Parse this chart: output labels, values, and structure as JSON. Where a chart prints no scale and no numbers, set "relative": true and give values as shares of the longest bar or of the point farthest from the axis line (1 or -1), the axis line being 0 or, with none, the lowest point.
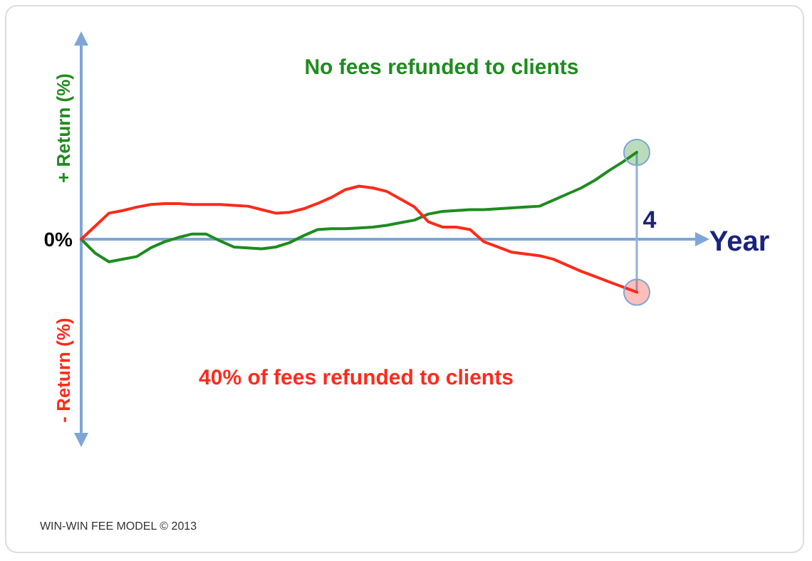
{
  "chart_data": {
    "type": "line",
    "relative": true,
    "xlabel": "Year",
    "ylabel": "+ Return (%)",
    "categories": [
      null,
      null,
      null,
      null,
      null,
      null,
      null,
      null,
      null,
      null,
      null,
      null,
      null,
      null,
      null,
      null,
      null,
      null,
      null,
      null,
      null,
      null,
      null,
      null,
      null,
      null,
      null,
      null,
      null,
      null,
      null,
      null,
      null,
      null,
      null,
      null,
      null,
      null,
      null,
      null,
      null
    ],
    "series": [
      {
        "name": "No fees refunded to clients",
        "color": "#1e8c1e",
        "values": [
          0,
          -0.16,
          -0.26,
          -0.23,
          -0.2,
          -0.1,
          -0.03,
          0.02,
          0.06,
          0.06,
          -0.02,
          -0.09,
          -0.1,
          -0.11,
          -0.09,
          -0.04,
          0.04,
          0.11,
          0.12,
          0.12,
          0.13,
          0.14,
          0.16,
          0.19,
          0.22,
          0.29,
          0.32,
          0.33,
          0.34,
          0.34,
          0.35,
          0.36,
          0.37,
          0.38,
          0.45,
          0.52,
          0.59,
          0.68,
          0.79,
          0.89,
          1
        ]
      },
      {
        "name": "40% of fees refunded to clients",
        "color": "#ff2a1a",
        "values": [
          0,
          0.15,
          0.3,
          0.33,
          0.37,
          0.4,
          0.41,
          0.41,
          0.4,
          0.4,
          0.4,
          0.39,
          0.38,
          0.34,
          0.3,
          0.31,
          0.35,
          0.41,
          0.48,
          0.57,
          0.61,
          0.59,
          0.55,
          0.46,
          0.37,
          0.2,
          0.14,
          0.14,
          0.11,
          -0.03,
          -0.09,
          -0.15,
          -0.17,
          -0.19,
          -0.23,
          -0.3,
          -0.37,
          -0.43,
          -0.49,
          -0.55,
          -0.61
        ]
      }
    ],
    "ref_lines": [
      {
        "axis": "y",
        "value": 0,
        "label": "0%",
        "color": "#7ea6d8"
      }
    ],
    "annotations": [
      "- Return (%)",
      "WIN-WIN FEE MODEL © 2013",
      "4"
    ],
    "legend": false,
    "marker": "none",
    "line_style": "solid"
  }
}
